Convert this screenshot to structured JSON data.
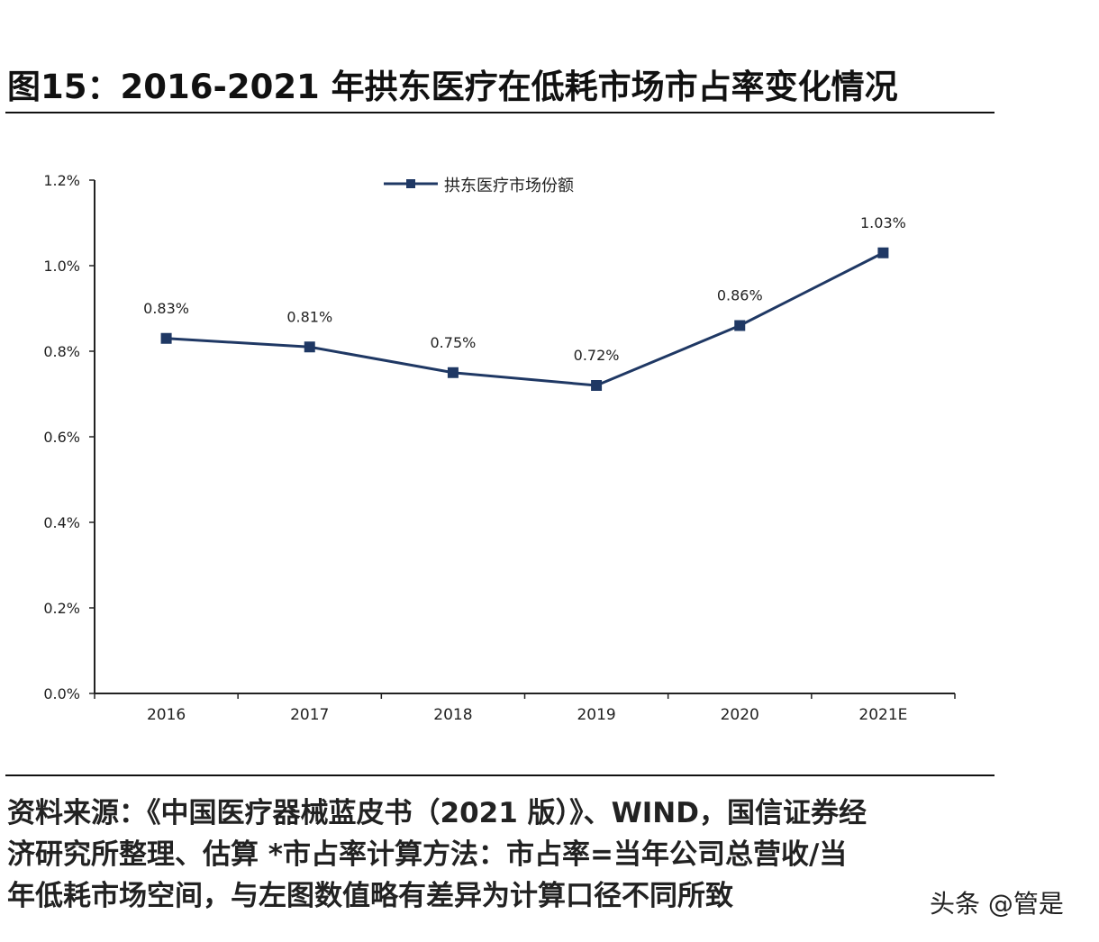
{
  "title": "图15：2016-2021 年拱东医疗在低耗市场市占率变化情况",
  "source_lines": [
    "资料来源：《中国医疗器械蓝皮书（2021 版）》、WIND，国信证券经",
    "济研究所整理、估算      *市占率计算方法：市占率=当年公司总营收/当",
    "年低耗市场空间，与左图数值略有差异为计算口径不同所致"
  ],
  "watermark": "头条 @管是",
  "chart_data": {
    "type": "line",
    "categories": [
      "2016",
      "2017",
      "2018",
      "2019",
      "2020",
      "2021E"
    ],
    "series": [
      {
        "name": "拱东医疗市场份额",
        "values": [
          0.83,
          0.81,
          0.75,
          0.72,
          0.86,
          1.03
        ],
        "labels": [
          "0.83%",
          "0.81%",
          "0.75%",
          "0.72%",
          "0.86%",
          "1.03%"
        ],
        "color": "#1f3864"
      }
    ],
    "ylim": [
      0,
      1.2
    ],
    "yticks": [
      "0.0%",
      "0.2%",
      "0.4%",
      "0.6%",
      "0.8%",
      "1.0%",
      "1.2%"
    ],
    "grid": false,
    "legend": "top-center"
  }
}
